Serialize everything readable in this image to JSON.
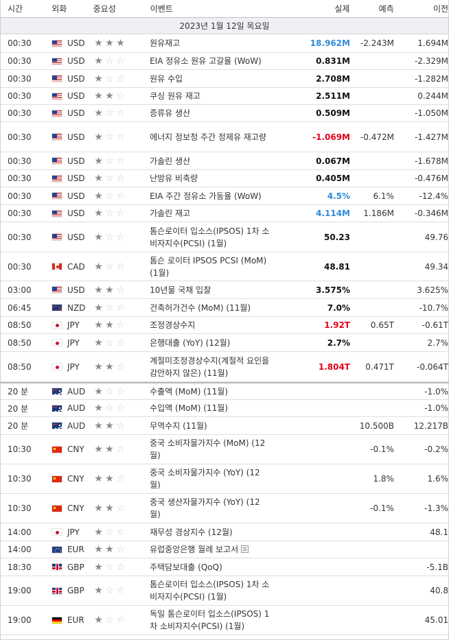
{
  "header": {
    "time": "시간",
    "currency": "외화",
    "importance": "중요성",
    "event": "이벤트",
    "actual": "실제",
    "forecast": "예측",
    "previous": "이전"
  },
  "date_label": "2023년 1월 12일 목요일",
  "rows": [
    {
      "time": "00:30",
      "flag": "us",
      "cur": "USD",
      "stars": 3,
      "event": "원유재고",
      "actual": "18.962M",
      "actual_color": "blue",
      "forecast": "-2.243M",
      "previous": "1.694M",
      "h": 27
    },
    {
      "time": "00:30",
      "flag": "us",
      "cur": "USD",
      "stars": 1,
      "event": "EIA 정유소 원유 고갈율 (WoW)",
      "actual": "0.831M",
      "actual_color": "black",
      "forecast": "",
      "previous": "-2.329M",
      "h": 25
    },
    {
      "time": "00:30",
      "flag": "us",
      "cur": "USD",
      "stars": 1,
      "event": "원유 수입",
      "actual": "2.708M",
      "actual_color": "black",
      "forecast": "",
      "previous": "-1.282M",
      "h": 26
    },
    {
      "time": "00:30",
      "flag": "us",
      "cur": "USD",
      "stars": 2,
      "event": "쿠싱 원유 재고",
      "actual": "2.511M",
      "actual_color": "black",
      "forecast": "",
      "previous": "0.244M",
      "h": 25
    },
    {
      "time": "00:30",
      "flag": "us",
      "cur": "USD",
      "stars": 1,
      "event": "증류유 생산",
      "actual": "0.509M",
      "actual_color": "black",
      "forecast": "",
      "previous": "-1.050M",
      "h": 25
    },
    {
      "time": "00:30",
      "flag": "us",
      "cur": "USD",
      "stars": 1,
      "event": "에너지 정보청 주간 정제유 재고량",
      "actual": "-1.069M",
      "actual_color": "red",
      "forecast": "-0.472M",
      "previous": "-1.427M",
      "h": 44
    },
    {
      "time": "00:30",
      "flag": "us",
      "cur": "USD",
      "stars": 1,
      "event": "가솔린 생산",
      "actual": "0.067M",
      "actual_color": "black",
      "forecast": "",
      "previous": "-1.678M",
      "h": 26
    },
    {
      "time": "00:30",
      "flag": "us",
      "cur": "USD",
      "stars": 1,
      "event": "난방유 비축량",
      "actual": "0.405M",
      "actual_color": "black",
      "forecast": "",
      "previous": "-0.476M",
      "h": 25
    },
    {
      "time": "00:30",
      "flag": "us",
      "cur": "USD",
      "stars": 1,
      "event": "EIA 주간 정유소 가동율 (WoW)",
      "actual": "4.5%",
      "actual_color": "blue",
      "forecast": "6.1%",
      "previous": "-12.4%",
      "h": 26
    },
    {
      "time": "00:30",
      "flag": "us",
      "cur": "USD",
      "stars": 1,
      "event": "가솔린 재고",
      "actual": "4.114M",
      "actual_color": "blue",
      "forecast": "1.186M",
      "previous": "-0.346M",
      "h": 25
    },
    {
      "time": "00:30",
      "flag": "us",
      "cur": "USD",
      "stars": 1,
      "event": "톰슨로이터 입소스(IPSOS) 1차 소비자지수(PCSI) (1월)",
      "actual": "50.23",
      "actual_color": "black",
      "forecast": "",
      "previous": "49.76",
      "h": 44
    },
    {
      "time": "00:30",
      "flag": "ca",
      "cur": "CAD",
      "stars": 1,
      "event": "톰슨 로이터 IPSOS PCSI (MoM) (1월)",
      "actual": "48.81",
      "actual_color": "black",
      "forecast": "",
      "previous": "49.34",
      "h": 42
    },
    {
      "time": "03:00",
      "flag": "us",
      "cur": "USD",
      "stars": 2,
      "event": "10년물 국채 입찰",
      "actual": "3.575%",
      "actual_color": "black",
      "forecast": "",
      "previous": "3.625%",
      "h": 26
    },
    {
      "time": "06:45",
      "flag": "nz",
      "cur": "NZD",
      "stars": 1,
      "event": "건축허가건수 (MoM) (11월)",
      "actual": "7.0%",
      "actual_color": "black",
      "forecast": "",
      "previous": "-10.7%",
      "h": 26
    },
    {
      "time": "08:50",
      "flag": "jp",
      "cur": "JPY",
      "stars": 2,
      "event": "조정경상수지",
      "actual": "1.92T",
      "actual_color": "red",
      "forecast": "0.65T",
      "previous": "-0.61T",
      "h": 25
    },
    {
      "time": "08:50",
      "flag": "jp",
      "cur": "JPY",
      "stars": 1,
      "event": "은행대출 (YoY) (12월)",
      "actual": "2.7%",
      "actual_color": "black",
      "forecast": "",
      "previous": "2.7%",
      "h": 26
    },
    {
      "time": "08:50",
      "flag": "jp",
      "cur": "JPY",
      "stars": 2,
      "event": "계절미조정경상수지(계절적 요인을 감안하지 않은) (11월)",
      "actual": "1.804T",
      "actual_color": "red",
      "forecast": "0.471T",
      "previous": "-0.064T",
      "h": 44
    },
    {
      "time": "20 분",
      "flag": "au",
      "cur": "AUD",
      "stars": 1,
      "event": "수출액 (MoM) (11월)",
      "actual": "",
      "actual_color": "black",
      "forecast": "",
      "previous": "-1.0%",
      "h": 26,
      "sep": true
    },
    {
      "time": "20 분",
      "flag": "au",
      "cur": "AUD",
      "stars": 1,
      "event": "수입액 (MoM) (11월)",
      "actual": "",
      "actual_color": "black",
      "forecast": "",
      "previous": "-1.0%",
      "h": 25
    },
    {
      "time": "20 분",
      "flag": "au",
      "cur": "AUD",
      "stars": 2,
      "event": "무역수지 (11월)",
      "actual": "",
      "actual_color": "black",
      "forecast": "10.500B",
      "previous": "12.217B",
      "h": 26
    },
    {
      "time": "10:30",
      "flag": "cn",
      "cur": "CNY",
      "stars": 2,
      "event": "중국 소비자물가지수 (MoM) (12월)",
      "actual": "",
      "actual_color": "black",
      "forecast": "-0.1%",
      "previous": "-0.2%",
      "h": 43
    },
    {
      "time": "10:30",
      "flag": "cn",
      "cur": "CNY",
      "stars": 2,
      "event": "중국 소비자물가지수 (YoY) (12월)",
      "actual": "",
      "actual_color": "black",
      "forecast": "1.8%",
      "previous": "1.6%",
      "h": 43
    },
    {
      "time": "10:30",
      "flag": "cn",
      "cur": "CNY",
      "stars": 2,
      "event": "중국 생산자물가지수 (YoY) (12월)",
      "actual": "",
      "actual_color": "black",
      "forecast": "-0.1%",
      "previous": "-1.3%",
      "h": 43
    },
    {
      "time": "14:00",
      "flag": "jp",
      "cur": "JPY",
      "stars": 1,
      "event": "재무성 경상지수 (12월)",
      "actual": "",
      "actual_color": "black",
      "forecast": "",
      "previous": "48.1",
      "h": 26
    },
    {
      "time": "14:00",
      "flag": "eu",
      "cur": "EUR",
      "stars": 2,
      "event": "유럽중앙은행 월례 보고서",
      "doc": true,
      "actual": "",
      "actual_color": "black",
      "forecast": "",
      "previous": "",
      "h": 25
    },
    {
      "time": "18:30",
      "flag": "gb",
      "cur": "GBP",
      "stars": 1,
      "event": "주택담보대출 (QoQ)",
      "actual": "",
      "actual_color": "black",
      "forecast": "",
      "previous": "-5.1B",
      "h": 26
    },
    {
      "time": "19:00",
      "flag": "gb",
      "cur": "GBP",
      "stars": 1,
      "event": "톰슨로이터 입소스(IPSOS) 1차 소비자지수(PCSI) (1월)",
      "actual": "",
      "actual_color": "black",
      "forecast": "",
      "previous": "40.8",
      "h": 43
    },
    {
      "time": "19:00",
      "flag": "de",
      "cur": "EUR",
      "stars": 1,
      "event": "독일 톰슨로이터 입소스(IPSOS) 1차 소비자지수(PCSI) (1월)",
      "actual": "",
      "actual_color": "black",
      "forecast": "",
      "previous": "45.01",
      "h": 43
    }
  ]
}
